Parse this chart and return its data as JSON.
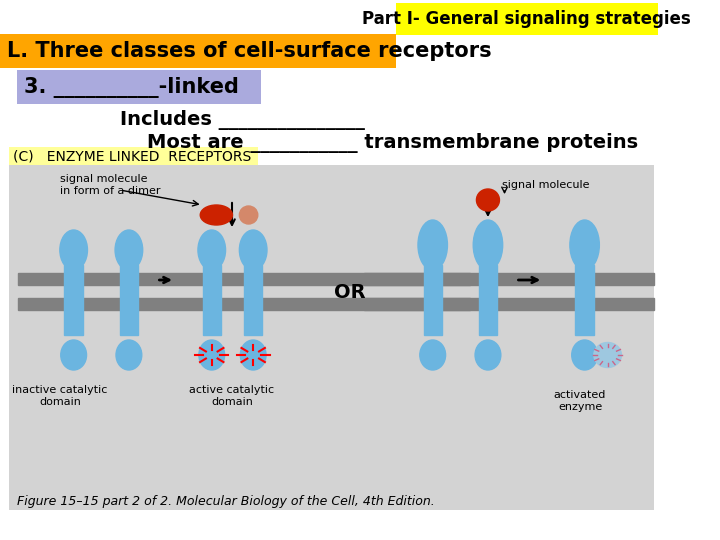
{
  "title_text": "Part I- General signaling strategies",
  "title_bg": "#FFFF00",
  "title_fg": "#000000",
  "title_fontsize": 12,
  "title_bold": true,
  "heading_text": "L. Three classes of cell-surface receptors",
  "heading_bg": "#FFA500",
  "heading_fg": "#000000",
  "heading_fontsize": 15,
  "heading_bold": true,
  "sub1_text": "3. __________-linked",
  "sub1_bg": "#AAAADD",
  "sub1_fg": "#000000",
  "sub1_fontsize": 15,
  "sub1_bold": true,
  "line2_text": "Includes _______________",
  "line2_fg": "#000000",
  "line2_fontsize": 14,
  "line2_bold": true,
  "line3_text": "Most are ___________ transmembrane proteins",
  "line3_fg": "#000000",
  "line3_fontsize": 14,
  "line3_bold": true,
  "label_c_text": "(C)   ENZYME LINKED  RECEPTORS",
  "label_c_bg": "#FFFF99",
  "label_c_fg": "#000000",
  "label_c_fontsize": 10,
  "diagram_bg": "#D3D3D3",
  "figure_caption": "Figure 15–15 part 2 of 2. Molecular Biology of the Cell, 4th Edition.",
  "caption_fontsize": 9,
  "bg_color": "#FFFFFF"
}
